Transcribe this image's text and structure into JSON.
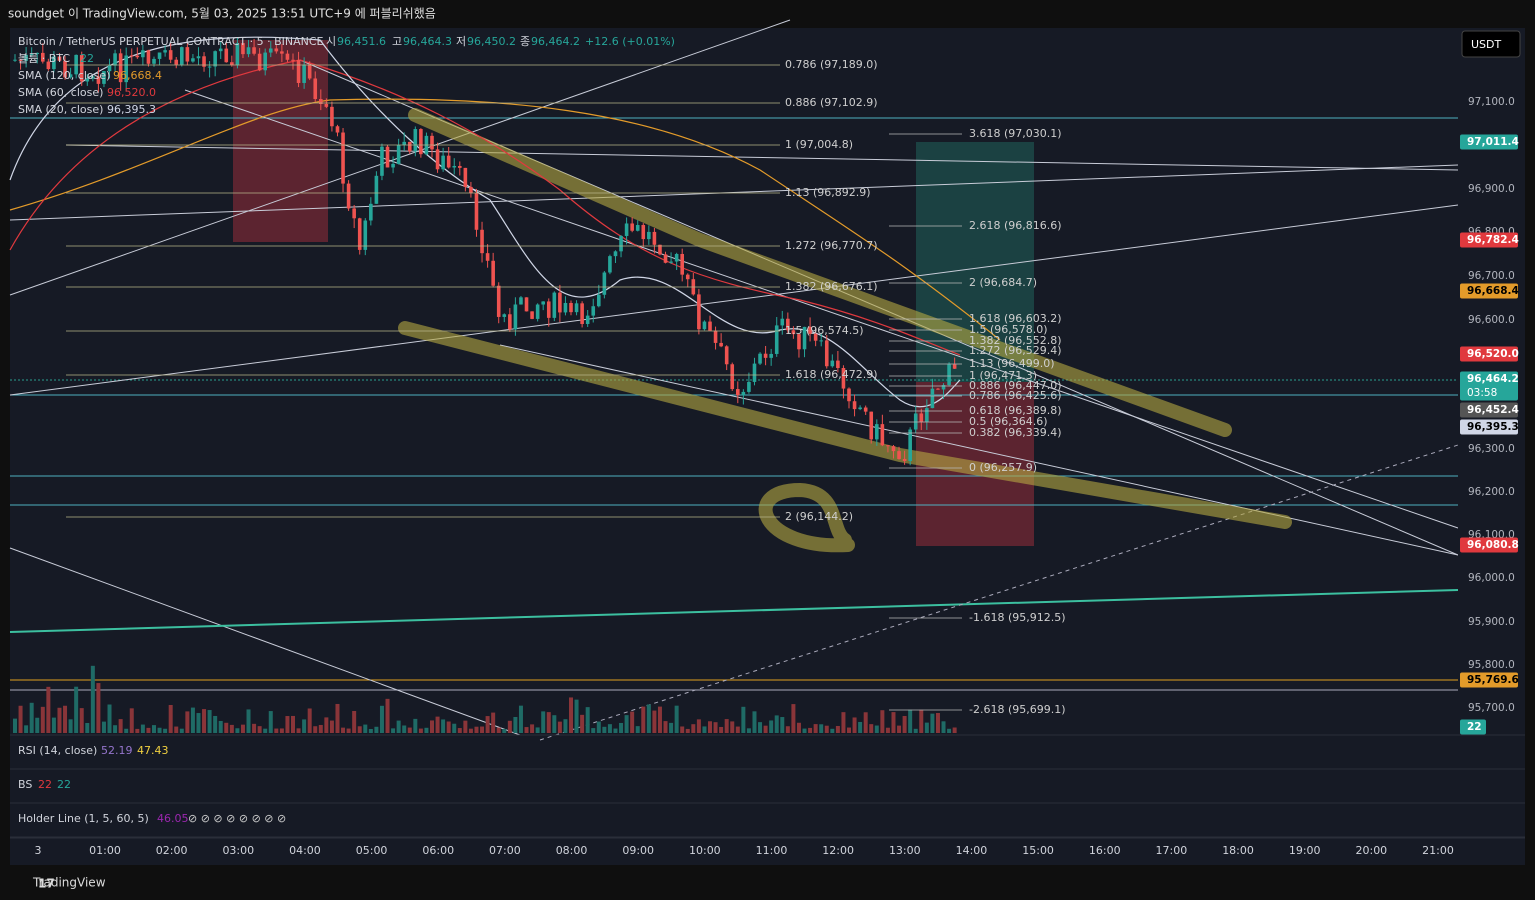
{
  "header": "soundget 이 TradingView.com, 5월 03, 2025 13:51 UTC+9 에 퍼블리쉬했음",
  "legend": {
    "symbol": "Bitcoin / TetherUS PERPETUAL CONTRACT · 5 · BINANCE",
    "ohlc": [
      {
        "k": "시",
        "v": "96,451.6"
      },
      {
        "k": "고",
        "v": "96,464.3"
      },
      {
        "k": "저",
        "v": "96,450.2"
      },
      {
        "k": "종",
        "v": "96,464.2"
      }
    ],
    "change": "+12.6 (+0.01%)",
    "lines": [
      {
        "name": "볼륨 · BTC",
        "value": "22"
      },
      {
        "name": "SMA (120, close)",
        "value": "96,668.4"
      },
      {
        "name": "SMA (60, close)",
        "value": "96,520.0"
      },
      {
        "name": "SMA (20, close)",
        "value": "96,395.3"
      }
    ]
  },
  "currency": "USDT",
  "price_axis": [
    "97,100.0",
    "96,900.0",
    "96,800.0",
    "96,700.0",
    "96,600.0",
    "96,300.0",
    "96,200.0",
    "96,100.0",
    "96,000.0",
    "95,900.0",
    "95,800.0",
    "95,700.0"
  ],
  "price_tags": [
    {
      "text": "97,011.4"
    },
    {
      "text": "96,782.4"
    },
    {
      "text": "96,668.4"
    },
    {
      "text": "96,520.0"
    },
    {
      "text": "96,464.2",
      "sub": "03:58"
    },
    {
      "text": "96,452.4"
    },
    {
      "text": "96,395.3"
    },
    {
      "text": "96,080.8"
    },
    {
      "text": "95,769.6"
    },
    {
      "text": "22"
    }
  ],
  "fib_left": [
    "0.786 (97,189.0)",
    "0.886 (97,102.9)",
    "1 (97,004.8)",
    "1.13 (96,892.9)",
    "1.272 (96,770.7)",
    "1.382 (96,676.1)",
    "1.5 (96,574.5)",
    "1.618 (96,472.9)",
    "2 (96,144.2)"
  ],
  "fib_right": [
    "3.618 (97,030.1)",
    "2.618 (96,816.6)",
    "2 (96,684.7)",
    "1.618 (96,603.2)",
    "1.5 (96,578.0)",
    "1.382 (96,552.8)",
    "1.272 (96,529.4)",
    "1.13 (96,499.0)",
    "1 (96,471.3)",
    "0.886 (96,447.0)",
    "0.786 (96,425.6)",
    "0.618 (96,389.8)",
    "0.5 (96,364.6)",
    "0.382 (96,339.4)",
    "0 (96,257.9)",
    "-1.618 (95,912.5)",
    "-2.618 (95,699.1)"
  ],
  "indicators": [
    {
      "name": "RSI (14, close)",
      "values": [
        "52.19",
        "47.43"
      ]
    },
    {
      "name": "BS",
      "values": [
        "22",
        "22"
      ]
    },
    {
      "name": "Holder Line (1, 5, 60, 5)",
      "values": [
        "46.05",
        "⊘ ⊘ ⊘ ⊘ ⊘ ⊘ ⊘ ⊘"
      ]
    }
  ],
  "time_axis": [
    "3",
    "01:00",
    "02:00",
    "03:00",
    "04:00",
    "05:00",
    "06:00",
    "07:00",
    "08:00",
    "09:00",
    "10:00",
    "11:00",
    "12:00",
    "13:00",
    "14:00",
    "15:00",
    "16:00",
    "17:00",
    "18:00",
    "19:00",
    "20:00",
    "21:00"
  ],
  "footer": "TradingView"
}
